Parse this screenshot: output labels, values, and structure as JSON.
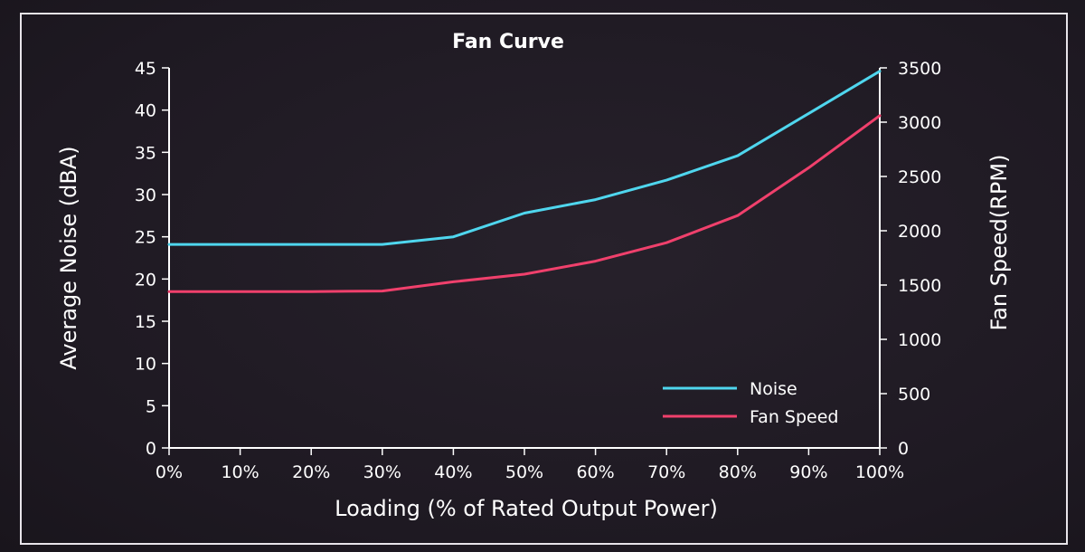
{
  "chart_data": {
    "type": "line",
    "title": "Fan Curve",
    "xlabel": "Loading (% of Rated Output Power)",
    "ylabel_left": "Average Noise (dBA)",
    "ylabel_right": "Fan Speed(RPM)",
    "x_ticks": [
      "0%",
      "10%",
      "20%",
      "30%",
      "40%",
      "50%",
      "60%",
      "70%",
      "80%",
      "90%",
      "100%"
    ],
    "x": [
      0,
      10,
      20,
      30,
      40,
      50,
      60,
      70,
      80,
      90,
      100
    ],
    "ylim_left": [
      0,
      45
    ],
    "ylim_right": [
      0,
      3500
    ],
    "y_ticks_left": [
      "0",
      "5",
      "10",
      "15",
      "20",
      "25",
      "30",
      "35",
      "40",
      "45"
    ],
    "y_ticks_right": [
      "0",
      "500",
      "1000",
      "1500",
      "2000",
      "2500",
      "3000",
      "3500"
    ],
    "grid": false,
    "legend_position": "bottom-right",
    "series": [
      {
        "name": "Noise",
        "axis": "left",
        "color": "#4fd6ee",
        "values": [
          24.1,
          24.1,
          24.1,
          24.1,
          25.0,
          27.8,
          29.4,
          31.7,
          34.6,
          39.6,
          44.6
        ]
      },
      {
        "name": "Fan Speed",
        "axis": "right",
        "color": "#f0406c",
        "values": [
          1440,
          1440,
          1440,
          1445,
          1530,
          1600,
          1720,
          1890,
          2140,
          2580,
          3060
        ]
      }
    ]
  }
}
